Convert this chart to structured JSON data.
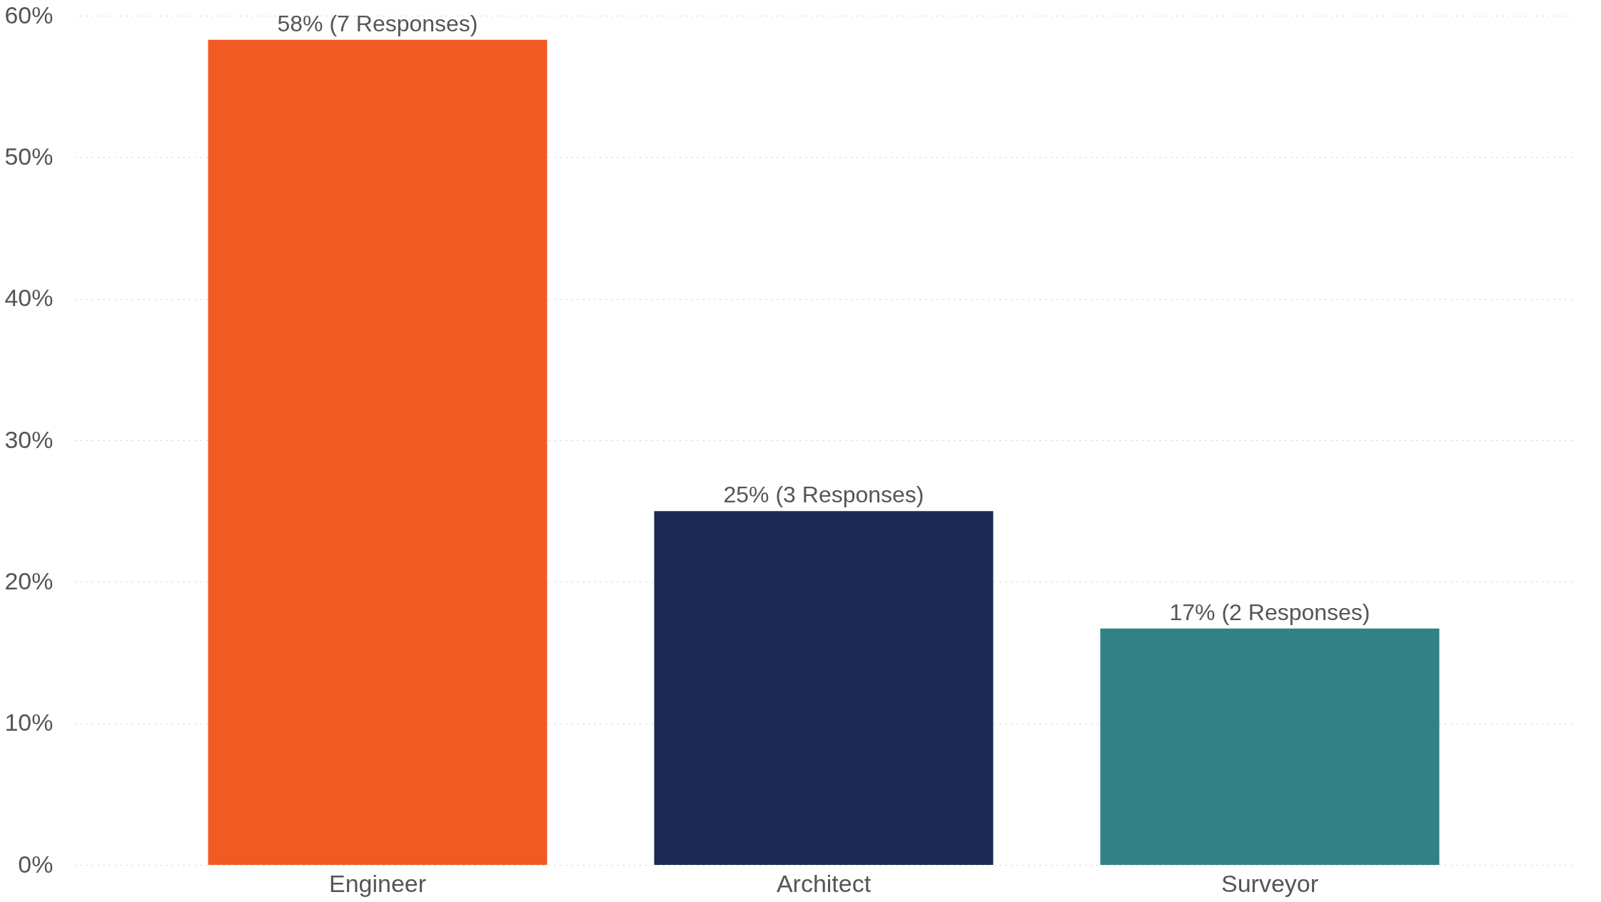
{
  "chart_data": {
    "type": "bar",
    "categories": [
      "Engineer",
      "Architect",
      "Surveyor"
    ],
    "values": [
      58.3,
      25,
      16.7
    ],
    "colors": [
      "#f15a22",
      "#1b2954",
      "#318185"
    ],
    "value_labels": [
      "58% (7 Responses)",
      "25% (3 Responses)",
      "17% (2 Responses)"
    ],
    "ylim": [
      0,
      60
    ],
    "yticks": [
      {
        "value": 0,
        "label": "0%"
      },
      {
        "value": 10,
        "label": "10%"
      },
      {
        "value": 20,
        "label": "20%"
      },
      {
        "value": 30,
        "label": "30%"
      },
      {
        "value": 40,
        "label": "40%"
      },
      {
        "value": 50,
        "label": "50%"
      },
      {
        "value": 60,
        "label": "60%"
      }
    ],
    "grid": "y",
    "legend": false
  }
}
